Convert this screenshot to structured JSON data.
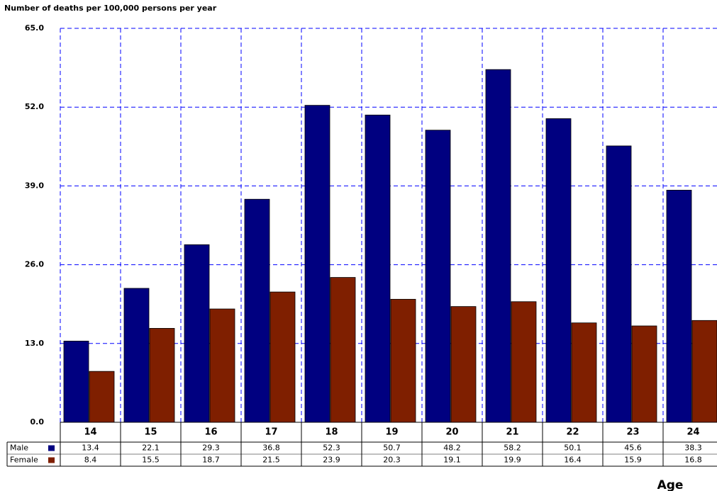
{
  "chart_data": {
    "type": "bar",
    "y_label": "Number of deaths per 100,000 persons per year",
    "x_label": "Age",
    "categories": [
      "14",
      "15",
      "16",
      "17",
      "18",
      "19",
      "20",
      "21",
      "22",
      "23",
      "24"
    ],
    "series": [
      {
        "name": "Male",
        "color": "#000080",
        "values": [
          13.4,
          22.1,
          29.3,
          36.8,
          52.3,
          50.7,
          48.2,
          58.2,
          50.1,
          45.6,
          38.3
        ]
      },
      {
        "name": "Female",
        "color": "#7f1f00",
        "values": [
          8.4,
          15.5,
          18.7,
          21.5,
          23.9,
          20.3,
          19.1,
          19.9,
          16.4,
          15.9,
          16.8
        ]
      }
    ],
    "ylim": [
      0,
      65
    ],
    "yticks": [
      {
        "value": 0,
        "label": "0.0"
      },
      {
        "value": 13,
        "label": "13.0"
      },
      {
        "value": 26,
        "label": "26.0"
      },
      {
        "value": 39,
        "label": "39.0"
      },
      {
        "value": 52,
        "label": "52.0"
      },
      {
        "value": 65,
        "label": "65.0"
      }
    ],
    "grid": true
  }
}
